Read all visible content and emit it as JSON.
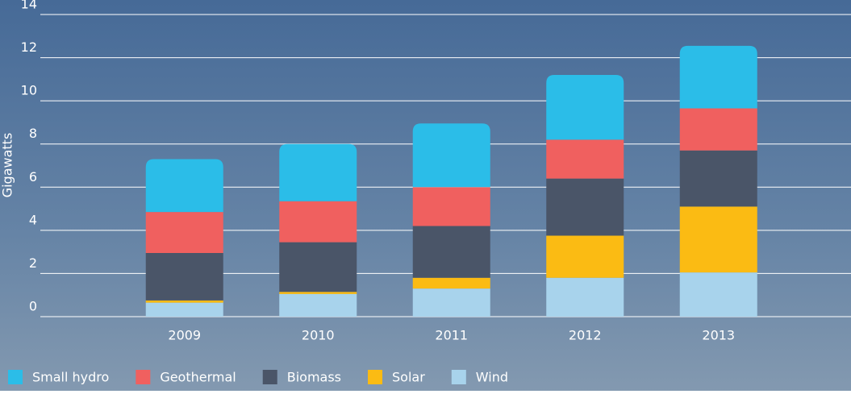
{
  "chart_data": {
    "type": "stacked_bar",
    "y_label": "Gigawatts",
    "categories": [
      "2009",
      "2010",
      "2011",
      "2012",
      "2013"
    ],
    "series": [
      {
        "name": "Wind",
        "color": "#a8d3ec",
        "values": [
          0.65,
          1.05,
          1.3,
          1.8,
          2.05
        ]
      },
      {
        "name": "Solar",
        "color": "#fbbb13",
        "values": [
          0.1,
          0.1,
          0.5,
          1.95,
          3.05
        ]
      },
      {
        "name": "Biomass",
        "color": "#4a5568",
        "values": [
          2.2,
          2.3,
          2.4,
          2.65,
          2.6
        ]
      },
      {
        "name": "Geothermal",
        "color": "#f0605f",
        "values": [
          1.9,
          1.9,
          1.8,
          1.8,
          1.95
        ]
      },
      {
        "name": "Small hydro",
        "color": "#2bbde8",
        "values": [
          2.45,
          2.65,
          2.95,
          3.0,
          2.9
        ]
      }
    ],
    "legend_order": [
      "Small hydro",
      "Geothermal",
      "Biomass",
      "Solar",
      "Wind"
    ],
    "ylim": [
      0,
      14
    ],
    "yticks": [
      0,
      2,
      4,
      6,
      8,
      10,
      12,
      14
    ],
    "grid": true
  }
}
